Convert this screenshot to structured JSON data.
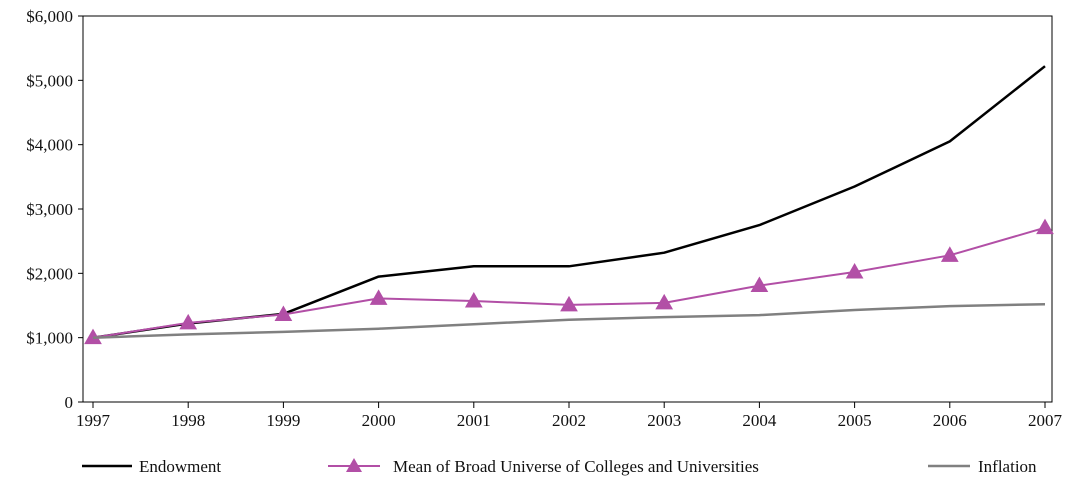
{
  "chart_data": {
    "type": "line",
    "title": "",
    "xlabel": "",
    "ylabel": "",
    "categories": [
      "1997",
      "1998",
      "1999",
      "2000",
      "2001",
      "2002",
      "2003",
      "2004",
      "2005",
      "2006",
      "2007"
    ],
    "ylim": [
      0,
      6000
    ],
    "y_ticks": [
      0,
      1000,
      2000,
      3000,
      4000,
      5000,
      6000
    ],
    "y_tick_labels": [
      "0",
      "$1,000",
      "$2,000",
      "$3,000",
      "$4,000",
      "$5,000",
      "$6,000"
    ],
    "grid": false,
    "legend_position": "bottom",
    "series": [
      {
        "name": "Endowment",
        "color": "#000000",
        "marker": "none",
        "values": [
          1000,
          1220,
          1370,
          1950,
          2110,
          2110,
          2320,
          2750,
          3350,
          4050,
          5220
        ]
      },
      {
        "name": "Mean of Broad Universe of Colleges and Universities",
        "color": "#b24fa6",
        "marker": "triangle",
        "values": [
          1000,
          1230,
          1360,
          1610,
          1570,
          1510,
          1540,
          1810,
          2020,
          2280,
          2710
        ]
      },
      {
        "name": "Inflation",
        "color": "#808080",
        "marker": "none",
        "values": [
          1000,
          1050,
          1090,
          1140,
          1210,
          1280,
          1320,
          1350,
          1430,
          1490,
          1520
        ]
      }
    ]
  }
}
